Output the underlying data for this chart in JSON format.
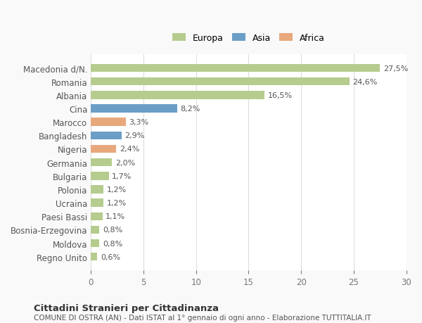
{
  "categories": [
    "Macedonia d/N.",
    "Romania",
    "Albania",
    "Cina",
    "Marocco",
    "Bangladesh",
    "Nigeria",
    "Germania",
    "Bulgaria",
    "Polonia",
    "Ucraina",
    "Paesi Bassi",
    "Bosnia-Erzegovina",
    "Moldova",
    "Regno Unito"
  ],
  "values": [
    27.5,
    24.6,
    16.5,
    8.2,
    3.3,
    2.9,
    2.4,
    2.0,
    1.7,
    1.2,
    1.2,
    1.1,
    0.8,
    0.8,
    0.6
  ],
  "labels": [
    "27,5%",
    "24,6%",
    "16,5%",
    "8,2%",
    "3,3%",
    "2,9%",
    "2,4%",
    "2,0%",
    "1,7%",
    "1,2%",
    "1,2%",
    "1,1%",
    "0,8%",
    "0,8%",
    "0,6%"
  ],
  "colors": [
    "#b5cc8e",
    "#b5cc8e",
    "#b5cc8e",
    "#6b9ec7",
    "#e8a87c",
    "#6b9ec7",
    "#e8a87c",
    "#b5cc8e",
    "#b5cc8e",
    "#b5cc8e",
    "#b5cc8e",
    "#b5cc8e",
    "#b5cc8e",
    "#b5cc8e",
    "#b5cc8e"
  ],
  "legend_labels": [
    "Europa",
    "Asia",
    "Africa"
  ],
  "legend_colors": [
    "#b5cc8e",
    "#6b9ec7",
    "#e8a87c"
  ],
  "title1": "Cittadini Stranieri per Cittadinanza",
  "title2": "COMUNE DI OSTRA (AN) - Dati ISTAT al 1° gennaio di ogni anno - Elaborazione TUTTITALIA.IT",
  "xlim": [
    0,
    30
  ],
  "xticks": [
    0,
    5,
    10,
    15,
    20,
    25,
    30
  ],
  "bg_color": "#f9f9f9",
  "bar_bg_color": "#ffffff",
  "grid_color": "#dddddd"
}
